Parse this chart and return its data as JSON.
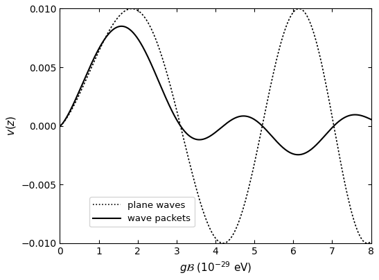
{
  "xlim": [
    0,
    8
  ],
  "ylim": [
    -0.01,
    0.01
  ],
  "xticks": [
    0,
    1,
    2,
    3,
    4,
    5,
    6,
    7,
    8
  ],
  "yticks": [
    -0.01,
    -0.005,
    0,
    0.005,
    0.01
  ],
  "xlabel": "$g\\mathcal{B}\\;(10^{-29}$ eV$)$",
  "ylabel": "$v(z)$",
  "legend_labels": [
    "plane waves",
    "wave packets"
  ],
  "line_colors": [
    "#000000",
    "#000000"
  ],
  "background_color": "#ffffff",
  "figsize": [
    5.47,
    4.04
  ],
  "dpi": 100,
  "omega": 1.496,
  "phase": -1.39,
  "amplitude": 0.01,
  "wp_sigma": 1.3,
  "wp_mu": 2.0
}
